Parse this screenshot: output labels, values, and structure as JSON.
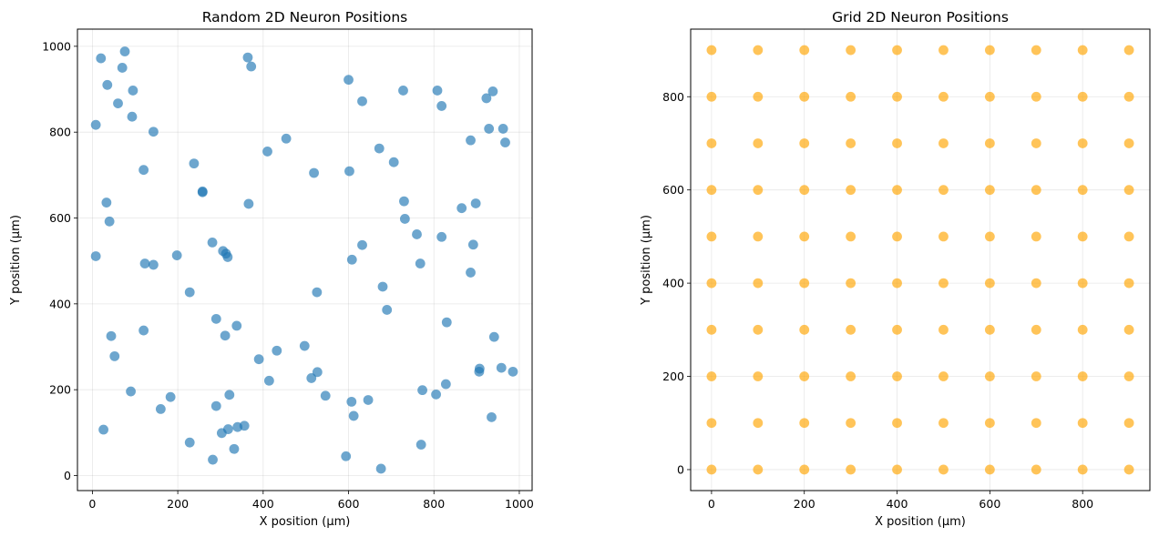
{
  "chart_data": [
    {
      "type": "scatter",
      "title": "Random 2D Neuron Positions",
      "xlabel": "X position (µm)",
      "ylabel": "Y position (µm)",
      "xlim": [
        -35,
        1030
      ],
      "ylim": [
        -35,
        1040
      ],
      "xticks": [
        0,
        200,
        400,
        600,
        800,
        1000
      ],
      "yticks": [
        0,
        200,
        400,
        600,
        800,
        1000
      ],
      "grid": true,
      "color": "#1f77b4",
      "points": [
        [
          20,
          972
        ],
        [
          76,
          988
        ],
        [
          35,
          910
        ],
        [
          70,
          950
        ],
        [
          95,
          897
        ],
        [
          60,
          867
        ],
        [
          93,
          836
        ],
        [
          8,
          817
        ],
        [
          143,
          801
        ],
        [
          120,
          712
        ],
        [
          238,
          727
        ],
        [
          258,
          660
        ],
        [
          258,
          662
        ],
        [
          33,
          636
        ],
        [
          40,
          592
        ],
        [
          8,
          511
        ],
        [
          123,
          494
        ],
        [
          143,
          491
        ],
        [
          198,
          513
        ],
        [
          228,
          427
        ],
        [
          281,
          543
        ],
        [
          306,
          523
        ],
        [
          313,
          517
        ],
        [
          317,
          509
        ],
        [
          364,
          974
        ],
        [
          372,
          953
        ],
        [
          410,
          755
        ],
        [
          454,
          785
        ],
        [
          366,
          633
        ],
        [
          519,
          705
        ],
        [
          600,
          922
        ],
        [
          632,
          872
        ],
        [
          602,
          709
        ],
        [
          672,
          762
        ],
        [
          706,
          730
        ],
        [
          728,
          897
        ],
        [
          808,
          897
        ],
        [
          818,
          861
        ],
        [
          730,
          639
        ],
        [
          732,
          598
        ],
        [
          760,
          562
        ],
        [
          768,
          494
        ],
        [
          818,
          556
        ],
        [
          865,
          623
        ],
        [
          886,
          781
        ],
        [
          898,
          634
        ],
        [
          923,
          879
        ],
        [
          938,
          895
        ],
        [
          929,
          808
        ],
        [
          962,
          808
        ],
        [
          967,
          776
        ],
        [
          892,
          538
        ],
        [
          886,
          473
        ],
        [
          526,
          427
        ],
        [
          608,
          503
        ],
        [
          632,
          537
        ],
        [
          680,
          440
        ],
        [
          690,
          386
        ],
        [
          44,
          325
        ],
        [
          52,
          278
        ],
        [
          120,
          338
        ],
        [
          90,
          196
        ],
        [
          160,
          155
        ],
        [
          183,
          183
        ],
        [
          26,
          107
        ],
        [
          228,
          77
        ],
        [
          282,
          37
        ],
        [
          290,
          365
        ],
        [
          311,
          326
        ],
        [
          338,
          349
        ],
        [
          390,
          271
        ],
        [
          432,
          291
        ],
        [
          414,
          221
        ],
        [
          497,
          302
        ],
        [
          513,
          227
        ],
        [
          527,
          241
        ],
        [
          546,
          186
        ],
        [
          321,
          188
        ],
        [
          290,
          162
        ],
        [
          303,
          99
        ],
        [
          318,
          108
        ],
        [
          340,
          113
        ],
        [
          356,
          116
        ],
        [
          332,
          62
        ],
        [
          594,
          45
        ],
        [
          607,
          172
        ],
        [
          612,
          139
        ],
        [
          646,
          176
        ],
        [
          676,
          16
        ],
        [
          770,
          72
        ],
        [
          773,
          199
        ],
        [
          805,
          189
        ],
        [
          828,
          213
        ],
        [
          830,
          357
        ],
        [
          907,
          249
        ],
        [
          906,
          242
        ],
        [
          941,
          323
        ],
        [
          958,
          251
        ],
        [
          985,
          242
        ],
        [
          935,
          136
        ]
      ]
    },
    {
      "type": "scatter",
      "title": "Grid 2D Neuron Positions",
      "xlabel": "X position (µm)",
      "ylabel": "Y position (µm)",
      "xlim": [
        -45,
        945
      ],
      "ylim": [
        -45,
        945
      ],
      "xticks": [
        0,
        200,
        400,
        600,
        800
      ],
      "yticks": [
        0,
        200,
        400,
        600,
        800
      ],
      "grid": true,
      "color": "#ffa500",
      "grid_x": [
        0,
        100,
        200,
        300,
        400,
        500,
        600,
        700,
        800,
        900
      ],
      "grid_y": [
        0,
        100,
        200,
        300,
        400,
        500,
        600,
        700,
        800,
        900
      ]
    }
  ]
}
